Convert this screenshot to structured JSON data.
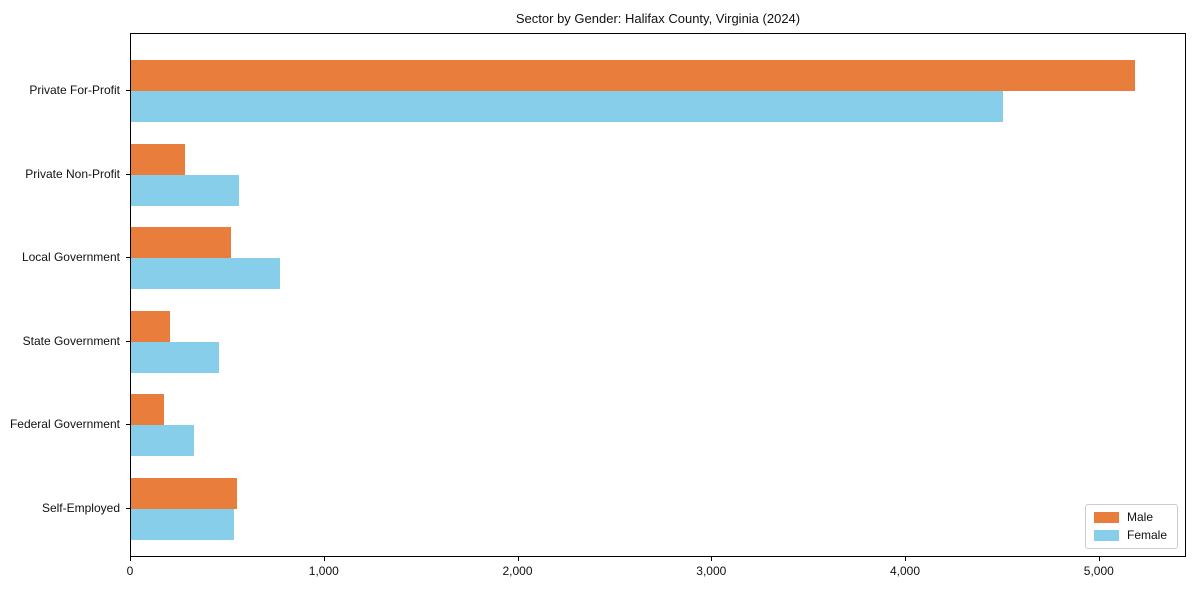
{
  "chart_data": {
    "type": "bar",
    "orientation": "horizontal",
    "title": "Sector by Gender: Halifax County, Virginia (2024)",
    "categories": [
      "Private For-Profit",
      "Private Non-Profit",
      "Local Government",
      "State Government",
      "Federal Government",
      "Self-Employed"
    ],
    "series": [
      {
        "name": "Male",
        "color": "#e87d3c",
        "values": [
          5180,
          280,
          515,
          200,
          170,
          545
        ]
      },
      {
        "name": "Female",
        "color": "#87ceeb",
        "values": [
          4500,
          555,
          770,
          455,
          325,
          530
        ]
      }
    ],
    "xlabel": "",
    "ylabel": "",
    "xlim": [
      0,
      5440
    ],
    "x_ticks": [
      0,
      1000,
      2000,
      3000,
      4000,
      5000
    ],
    "x_tick_labels": [
      "0",
      "1,000",
      "2,000",
      "3,000",
      "4,000",
      "5,000"
    ],
    "grid": false,
    "legend_position": "lower right",
    "plot_background": "#ffffff",
    "spine_color": "#000000"
  }
}
